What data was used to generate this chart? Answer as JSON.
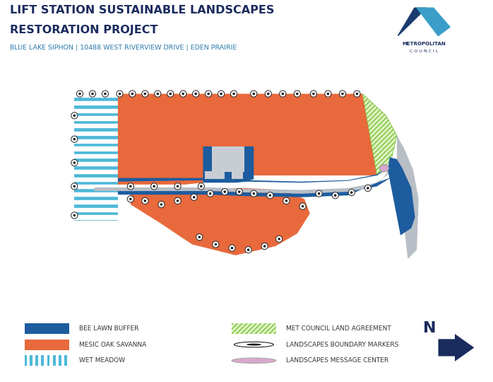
{
  "title_line1": "LIFT STATION SUSTAINABLE LANDSCAPES",
  "title_line2": "RESTORATION PROJECT",
  "subtitle": "BLUE LAKE SIPHON | 10488 WEST RIVERVIEW DRIVE | EDEN PRAIRIE",
  "bg_color": "#ffffff",
  "map_bg_color": "#c5dfc5",
  "title_color": "#1a2b5e",
  "subtitle_color": "#2a7aad",
  "orange_color": "#e8693c",
  "blue_color": "#1d5c9e",
  "teal_color": "#4db8d8",
  "green_hatch_color": "#72c23a",
  "gray_color": "#b8bec6",
  "gray_light": "#c8cdd4",
  "pink_color": "#d8a8cc",
  "north_color": "#1a2b5e",
  "legend_wet_color": "#4db8d8"
}
